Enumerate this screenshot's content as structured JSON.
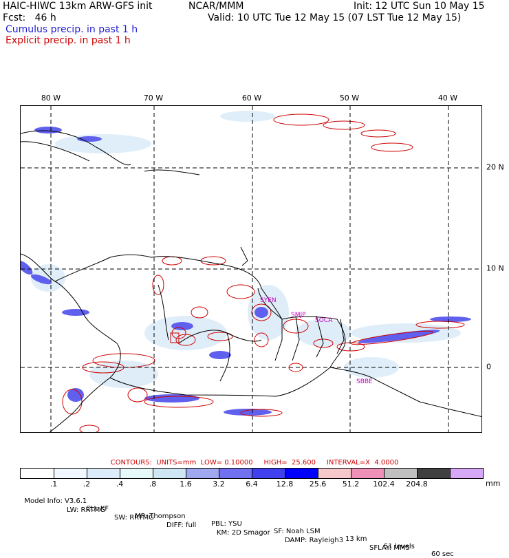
{
  "header": {
    "model_title": "HAIC-HIWC 13km ARW-GFS init",
    "agency": "NCAR/MMM",
    "init": "Init: 12 UTC Sun 10 May 15",
    "fcst": "Fcst:   46 h",
    "valid": "Valid: 10 UTC Tue 12 May 15 (07 LST Tue 12 May 15)",
    "legend_cumulus": "Cumulus precip. in past 1 h",
    "legend_explicit": "Explicit precip. in past 1 h"
  },
  "colors": {
    "cumulus": "#2020d0",
    "explicit": "#d00000",
    "station": "#c000c0"
  },
  "map": {
    "lon_labels": [
      "80 W",
      "70 W",
      "60 W",
      "50 W",
      "40 W"
    ],
    "lat_labels": [
      "20 N",
      "10 N",
      "0"
    ],
    "stations": [
      "SYEN",
      "SMJP",
      "SOCA",
      "SBBE"
    ]
  },
  "contours_text": "CONTOURS:  UNITS=mm  LOW= 0.10000     HIGH=  25.600     INTERVAL=X  4.0000",
  "color_scale": {
    "colors": [
      "#ffffff",
      "#f2f8ff",
      "#dcecfb",
      "#e6f8f8",
      "#cfe6f5",
      "#a0a8f0",
      "#7070f0",
      "#4040ee",
      "#0000ff",
      "#f6c8cc",
      "#ee90b8",
      "#c0c0c0",
      "#404040",
      "#d8a8f8"
    ],
    "labels": [
      ".1",
      ".2",
      ".4",
      ".8",
      "1.6",
      "3.2",
      "6.4",
      "12.8",
      "25.6",
      "51.2",
      "102.4",
      "204.8"
    ],
    "unit": "mm"
  },
  "footer": {
    "line1": [
      "Model Info: V3.6.1",
      "CU: KF",
      "MP: Thompson",
      "PBL: YSU",
      "SF: Noah LSM",
      "13 km",
      "51 levels",
      "60 sec"
    ],
    "line2": [
      "LW: RRTMG",
      "SW: RRTMG",
      "DIFF: full",
      "KM: 2D Smagor",
      "DAMP: Rayleigh3",
      "SFLAY: MM5"
    ]
  }
}
